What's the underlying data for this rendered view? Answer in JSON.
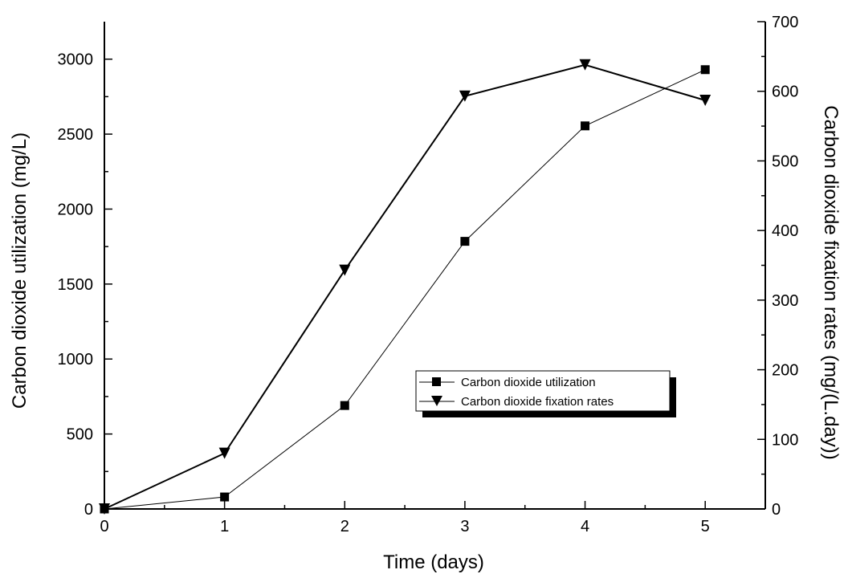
{
  "chart_data": {
    "type": "line",
    "xlabel": "Time (days)",
    "ylabel_left": "Carbon dioxide utilization (mg/L)",
    "ylabel_right": "Carbon dioxide fixation rates (mg/(L.day))",
    "x": [
      0,
      1,
      2,
      3,
      4,
      5
    ],
    "xlim": [
      0,
      5.5
    ],
    "xticks": [
      0,
      1,
      2,
      3,
      4,
      5
    ],
    "ylim_left": [
      0,
      3250
    ],
    "yticks_left": [
      0,
      500,
      1000,
      1500,
      2000,
      2500,
      3000
    ],
    "ylim_right": [
      0,
      700
    ],
    "yticks_right": [
      0,
      100,
      200,
      300,
      400,
      500,
      600,
      700
    ],
    "grid": false,
    "legend_position": "lower-right",
    "series": [
      {
        "name": "Carbon dioxide utilization",
        "axis": "left",
        "marker": "square",
        "values": [
          0,
          80,
          690,
          1785,
          2555,
          2930
        ]
      },
      {
        "name": "Carbon dioxide fixation rates",
        "axis": "right",
        "marker": "triangle-down",
        "values": [
          0,
          80,
          343,
          593,
          638,
          587
        ]
      }
    ]
  }
}
